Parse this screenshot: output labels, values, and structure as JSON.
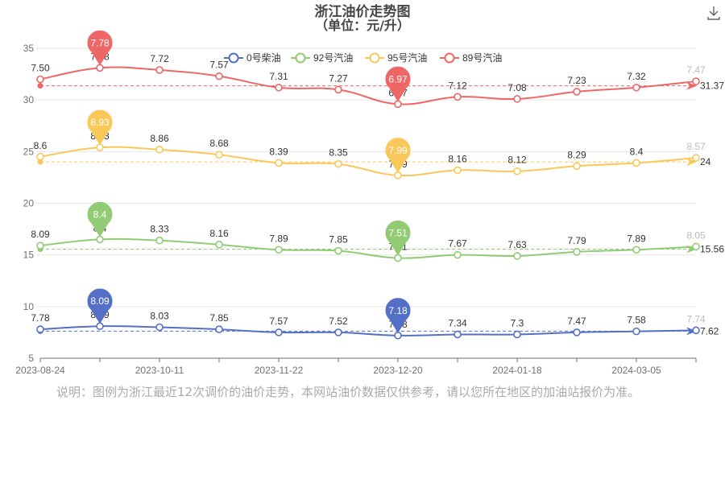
{
  "chart_data": {
    "type": "line",
    "title": "浙江油价走势图",
    "subtitle": "（单位：元/升）",
    "xlabel": "",
    "ylabel": "",
    "ylim": [
      5,
      35
    ],
    "y_ticks": [
      "5",
      "10",
      "15",
      "20",
      "25",
      "30",
      "35"
    ],
    "x_ticks": [
      "2023-08-24",
      "2023-10-11",
      "2023-11-22",
      "2023-12-20",
      "2024-01-18",
      "2024-03-05"
    ],
    "grid": true,
    "legend_position": "top",
    "x_points": 12,
    "series": [
      {
        "name": "0号柴油",
        "color": "#5470c6",
        "labels": [
          "7.78",
          "8.09",
          "8.03",
          "7.85",
          "7.57",
          "7.52",
          "7.18",
          "7.34",
          "7.3",
          "7.47",
          "7.58",
          "7.74"
        ],
        "values": [
          7.78,
          8.09,
          8.03,
          7.85,
          7.57,
          7.52,
          7.18,
          7.34,
          7.3,
          7.47,
          7.58,
          7.74
        ],
        "plot_values": [
          7.8,
          8.1,
          8.0,
          7.8,
          7.5,
          7.5,
          7.2,
          7.3,
          7.3,
          7.5,
          7.6,
          7.7
        ],
        "max_label": "8.09",
        "min_label": "7.18",
        "average": 7.62,
        "average_label": "7.62"
      },
      {
        "name": "92号汽油",
        "color": "#91cc75",
        "labels": [
          "8.09",
          "8.4",
          "8.33",
          "8.16",
          "7.89",
          "7.85",
          "7.51",
          "7.67",
          "7.63",
          "7.79",
          "7.89",
          "8.05"
        ],
        "values": [
          8.09,
          8.4,
          8.33,
          8.16,
          7.89,
          7.85,
          7.51,
          7.67,
          7.63,
          7.79,
          7.89,
          8.05
        ],
        "plot_values": [
          15.9,
          16.5,
          16.4,
          16.0,
          15.5,
          15.4,
          14.7,
          15.0,
          14.9,
          15.3,
          15.5,
          15.8
        ],
        "max_label": "8.4",
        "min_label": "7.51",
        "average": 15.56,
        "average_label": "15.56"
      },
      {
        "name": "95号汽油",
        "color": "#fac858",
        "labels": [
          "8.6",
          "8.93",
          "8.86",
          "8.68",
          "8.39",
          "8.35",
          "7.99",
          "8.16",
          "8.12",
          "8.29",
          "8.4",
          "8.57"
        ],
        "values": [
          8.6,
          8.93,
          8.86,
          8.68,
          8.39,
          8.35,
          7.99,
          8.16,
          8.12,
          8.29,
          8.4,
          8.57
        ],
        "plot_values": [
          24.5,
          25.4,
          25.2,
          24.7,
          23.9,
          23.8,
          22.7,
          23.2,
          23.1,
          23.6,
          23.9,
          24.4
        ],
        "max_label": "8.93",
        "min_label": "7.99",
        "average": 24,
        "average_label": "24"
      },
      {
        "name": "89号汽油",
        "color": "#ee6666",
        "labels": [
          "7.50",
          "7.78",
          "7.72",
          "7.57",
          "7.31",
          "7.27",
          "6.97",
          "7.12",
          "7.08",
          "7.23",
          "7.32",
          "7.47"
        ],
        "values": [
          7.5,
          7.78,
          7.72,
          7.57,
          7.31,
          7.27,
          6.97,
          7.12,
          7.08,
          7.23,
          7.32,
          7.47
        ],
        "plot_values": [
          32.0,
          33.1,
          32.9,
          32.3,
          31.2,
          31.0,
          29.6,
          30.3,
          30.1,
          30.8,
          31.2,
          31.8
        ],
        "max_label": "7.78",
        "min_label": "6.97",
        "average": 31.37,
        "average_label": "31.37"
      }
    ]
  },
  "toolbar": {
    "download_icon": "download-icon"
  },
  "note": "说明：图例为浙江最近12次调价的油价走势，本网站油价数据仅供参考，请以您所在地区的加油站报价为准。"
}
